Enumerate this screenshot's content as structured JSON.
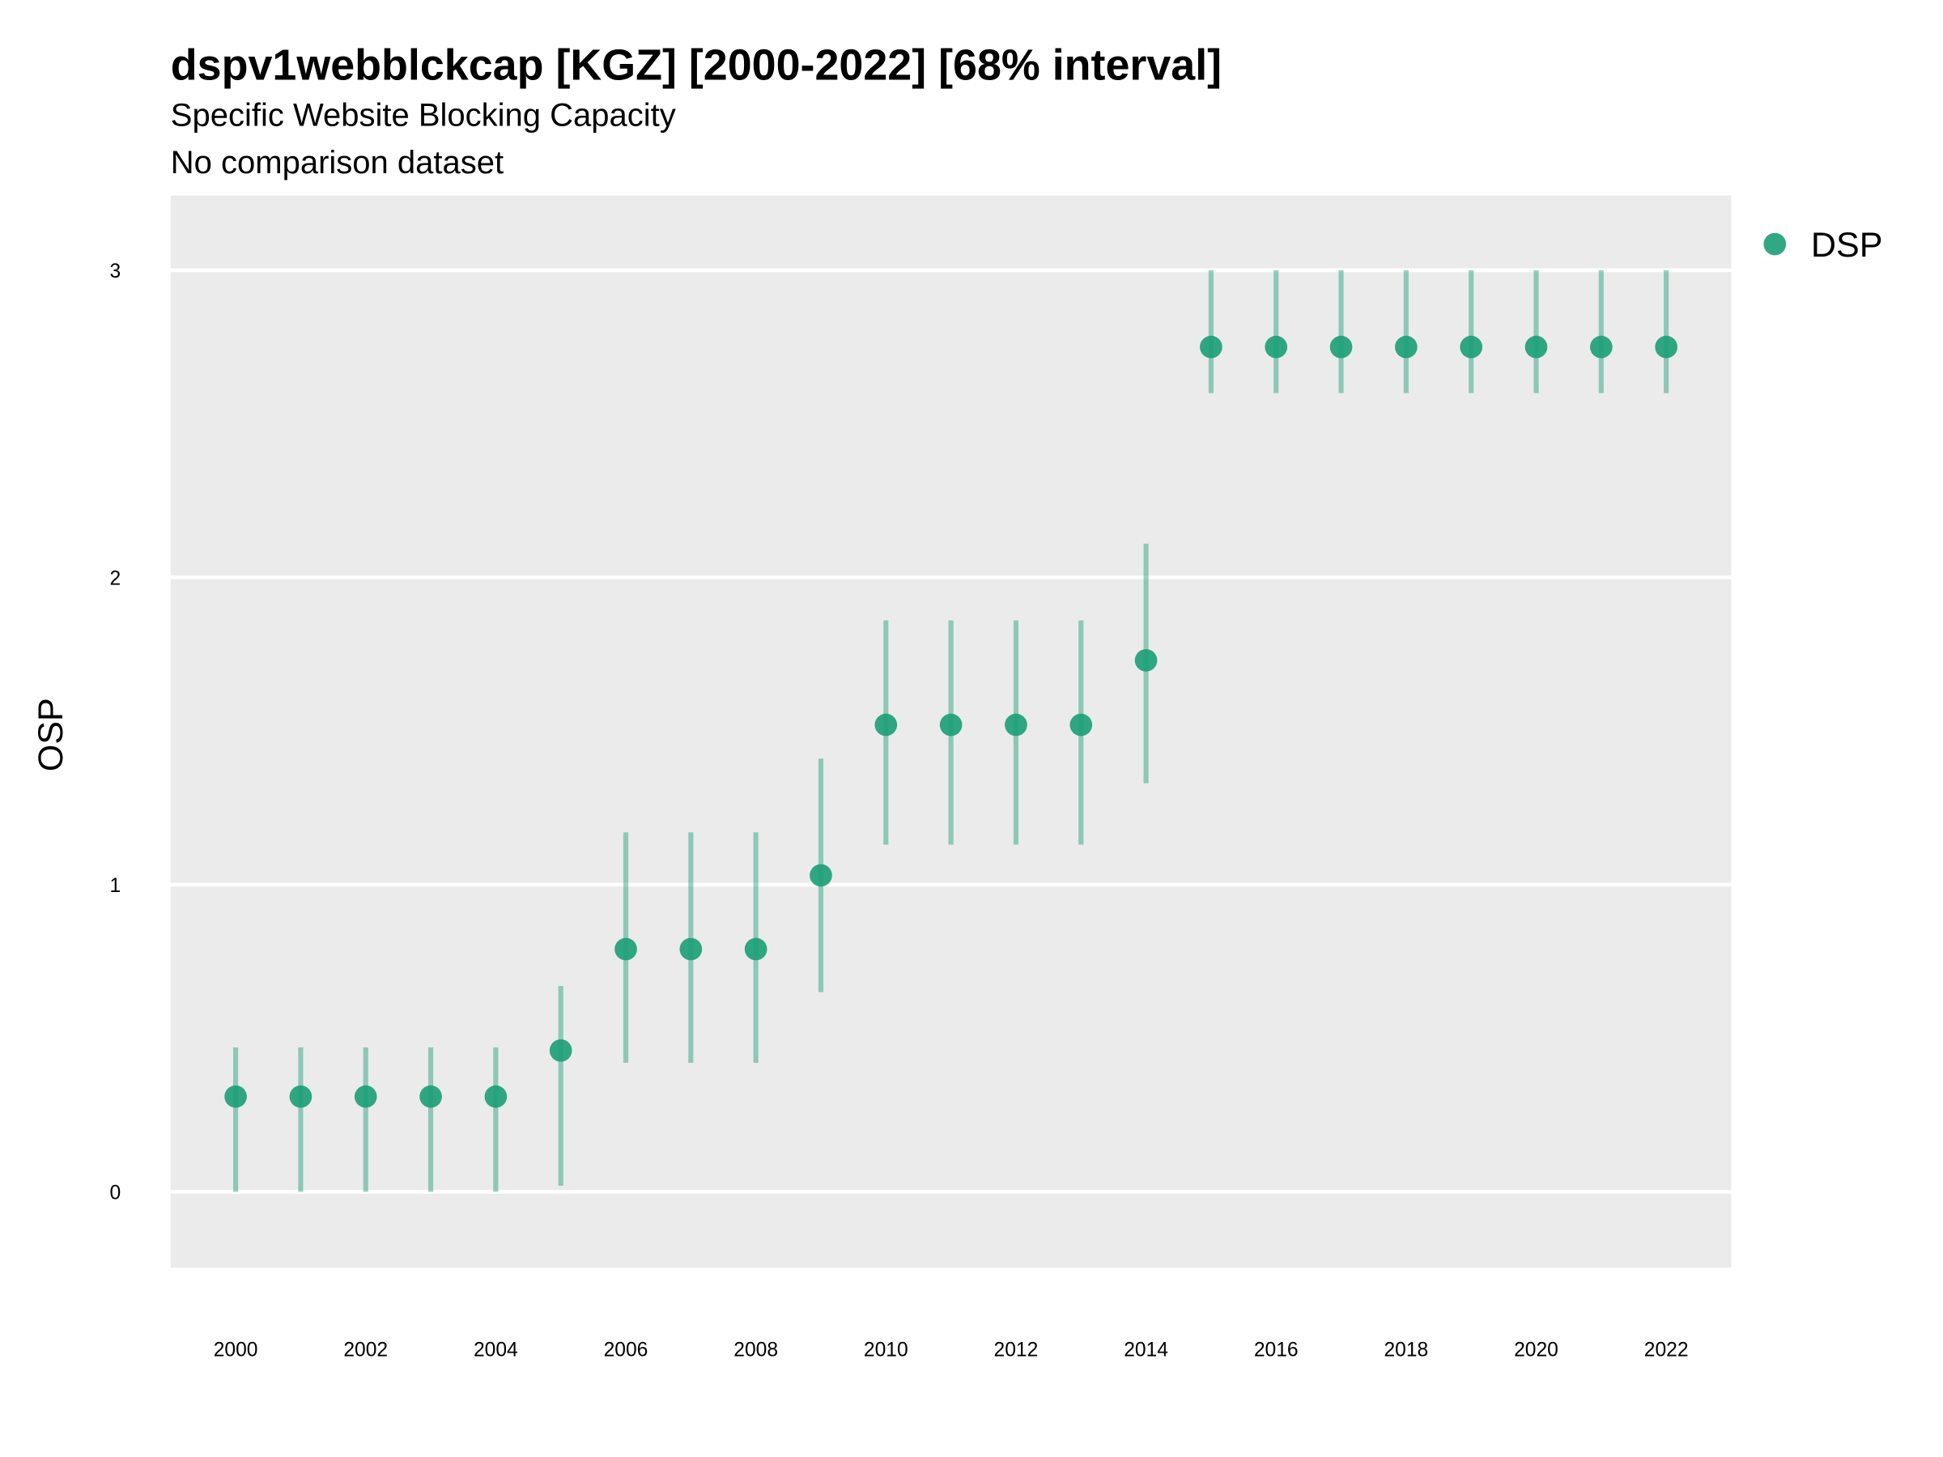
{
  "chart_data": {
    "type": "scatter",
    "title": "dspv1webblckcap [KGZ] [2000-2022] [68% interval]",
    "subtitle": "Specific Website Blocking Capacity",
    "caption_line": "No comparison dataset",
    "xlabel": "",
    "ylabel": "OSP",
    "xlim": [
      1999,
      2023
    ],
    "ylim": [
      -0.247,
      3.243
    ],
    "x_ticks": [
      2000,
      2002,
      2004,
      2006,
      2008,
      2010,
      2012,
      2014,
      2016,
      2018,
      2020,
      2022
    ],
    "y_ticks": [
      0,
      1,
      2,
      3
    ],
    "grid": true,
    "legend": {
      "position": "right-top",
      "entries": [
        "DSP"
      ]
    },
    "colors": {
      "point": "#1b9e77",
      "interval": "#1b9e77",
      "panel": "#ebebeb",
      "grid": "#ffffff"
    },
    "series": [
      {
        "name": "DSP",
        "x": [
          2000,
          2001,
          2002,
          2003,
          2004,
          2005,
          2006,
          2007,
          2008,
          2009,
          2010,
          2011,
          2012,
          2013,
          2014,
          2015,
          2016,
          2017,
          2018,
          2019,
          2020,
          2021,
          2022
        ],
        "y": [
          0.31,
          0.31,
          0.31,
          0.31,
          0.31,
          0.46,
          0.79,
          0.79,
          0.79,
          1.03,
          1.52,
          1.52,
          1.52,
          1.52,
          1.73,
          2.75,
          2.75,
          2.75,
          2.75,
          2.75,
          2.75,
          2.75,
          2.75
        ],
        "lower": [
          0,
          0,
          0,
          0,
          0,
          0.02,
          0.42,
          0.42,
          0.42,
          0.65,
          1.13,
          1.13,
          1.13,
          1.13,
          1.33,
          2.6,
          2.6,
          2.6,
          2.6,
          2.6,
          2.6,
          2.6,
          2.6
        ],
        "upper": [
          0.47,
          0.47,
          0.47,
          0.47,
          0.47,
          0.67,
          1.17,
          1.17,
          1.17,
          1.41,
          1.86,
          1.86,
          1.86,
          1.86,
          2.11,
          3.0,
          3.0,
          3.0,
          3.0,
          3.0,
          3.0,
          3.0,
          3.0
        ]
      }
    ]
  }
}
